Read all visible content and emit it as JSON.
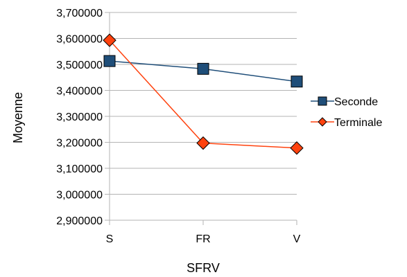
{
  "chart_data": {
    "type": "line",
    "xlabel": "SFRV",
    "ylabel": "Moyenne",
    "categories": [
      "S",
      "FR",
      "V"
    ],
    "ylim": [
      2.9,
      3.7
    ],
    "ytick_labels": [
      "2,900000",
      "3,000000",
      "3,100000",
      "3,200000",
      "3,300000",
      "3,400000",
      "3,500000",
      "3,600000",
      "3,700000"
    ],
    "grid": "horizontal",
    "legend_position": "right",
    "series": [
      {
        "name": "Seconde",
        "values": [
          3.513,
          3.483,
          3.434
        ],
        "color": "#1f4e79",
        "marker": "square"
      },
      {
        "name": "Terminale",
        "values": [
          3.593,
          3.197,
          3.178
        ],
        "color": "#ff420e",
        "marker": "diamond"
      }
    ]
  }
}
